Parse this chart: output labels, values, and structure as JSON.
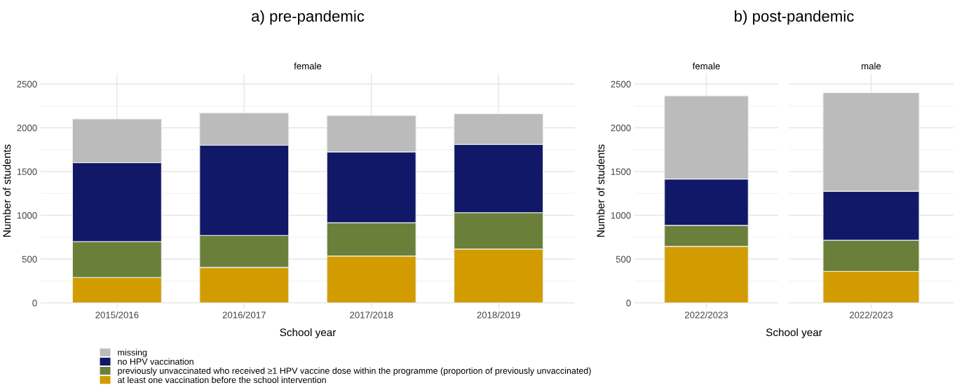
{
  "chart_data": [
    {
      "type": "bar",
      "title": "a) pre-pandemic",
      "subtitle": "female",
      "xlabel": "School year",
      "ylabel": "Number of students",
      "stacked": true,
      "categories": [
        "2015/2016",
        "2016/2017",
        "2017/2018",
        "2018/2019"
      ],
      "ylim": [
        -60,
        2620
      ],
      "yticks": [
        0,
        500,
        1000,
        1500,
        2000,
        2500
      ],
      "grid": true,
      "legend": "bottom",
      "series": [
        {
          "name": "at least one vaccination before the school intervention",
          "color": "#d29c00",
          "values": [
            290,
            405,
            535,
            615
          ]
        },
        {
          "name": "previously unvaccinated who received ≥1 HPV vaccine dose within the programme (proportion of previously unvaccinated)",
          "color": "#6a803a",
          "values": [
            410,
            365,
            380,
            415
          ]
        },
        {
          "name": "no HPV vaccination",
          "color": "#111868",
          "values": [
            900,
            1030,
            810,
            780
          ]
        },
        {
          "name": "missing",
          "color": "#bbbbbb",
          "values": [
            500,
            370,
            415,
            350
          ]
        }
      ]
    },
    {
      "type": "bar",
      "title": "b) post-pandemic",
      "subtitle": "female",
      "xlabel": "School year",
      "ylabel": "Number of students",
      "stacked": true,
      "categories": [
        "2022/2023"
      ],
      "ylim": [
        -60,
        2620
      ],
      "yticks": [
        0,
        500,
        1000,
        1500,
        2000,
        2500
      ],
      "grid": true,
      "series": [
        {
          "color": "#d29c00",
          "values": [
            645
          ]
        },
        {
          "color": "#6a803a",
          "values": [
            240
          ]
        },
        {
          "color": "#111868",
          "values": [
            530
          ]
        },
        {
          "color": "#bbbbbb",
          "values": [
            950
          ]
        }
      ]
    },
    {
      "type": "bar",
      "subtitle": "male",
      "stacked": true,
      "categories": [
        "2022/2023"
      ],
      "ylim": [
        -60,
        2620
      ],
      "yticks": [
        0,
        500,
        1000,
        1500,
        2000,
        2500
      ],
      "grid": true,
      "tick_labels": "x",
      "series": [
        {
          "color": "#d29c00",
          "values": [
            360
          ]
        },
        {
          "color": "#6a803a",
          "values": [
            355
          ]
        },
        {
          "color": "#111868",
          "values": [
            560
          ]
        },
        {
          "color": "#bbbbbb",
          "values": [
            1125
          ]
        }
      ]
    }
  ]
}
